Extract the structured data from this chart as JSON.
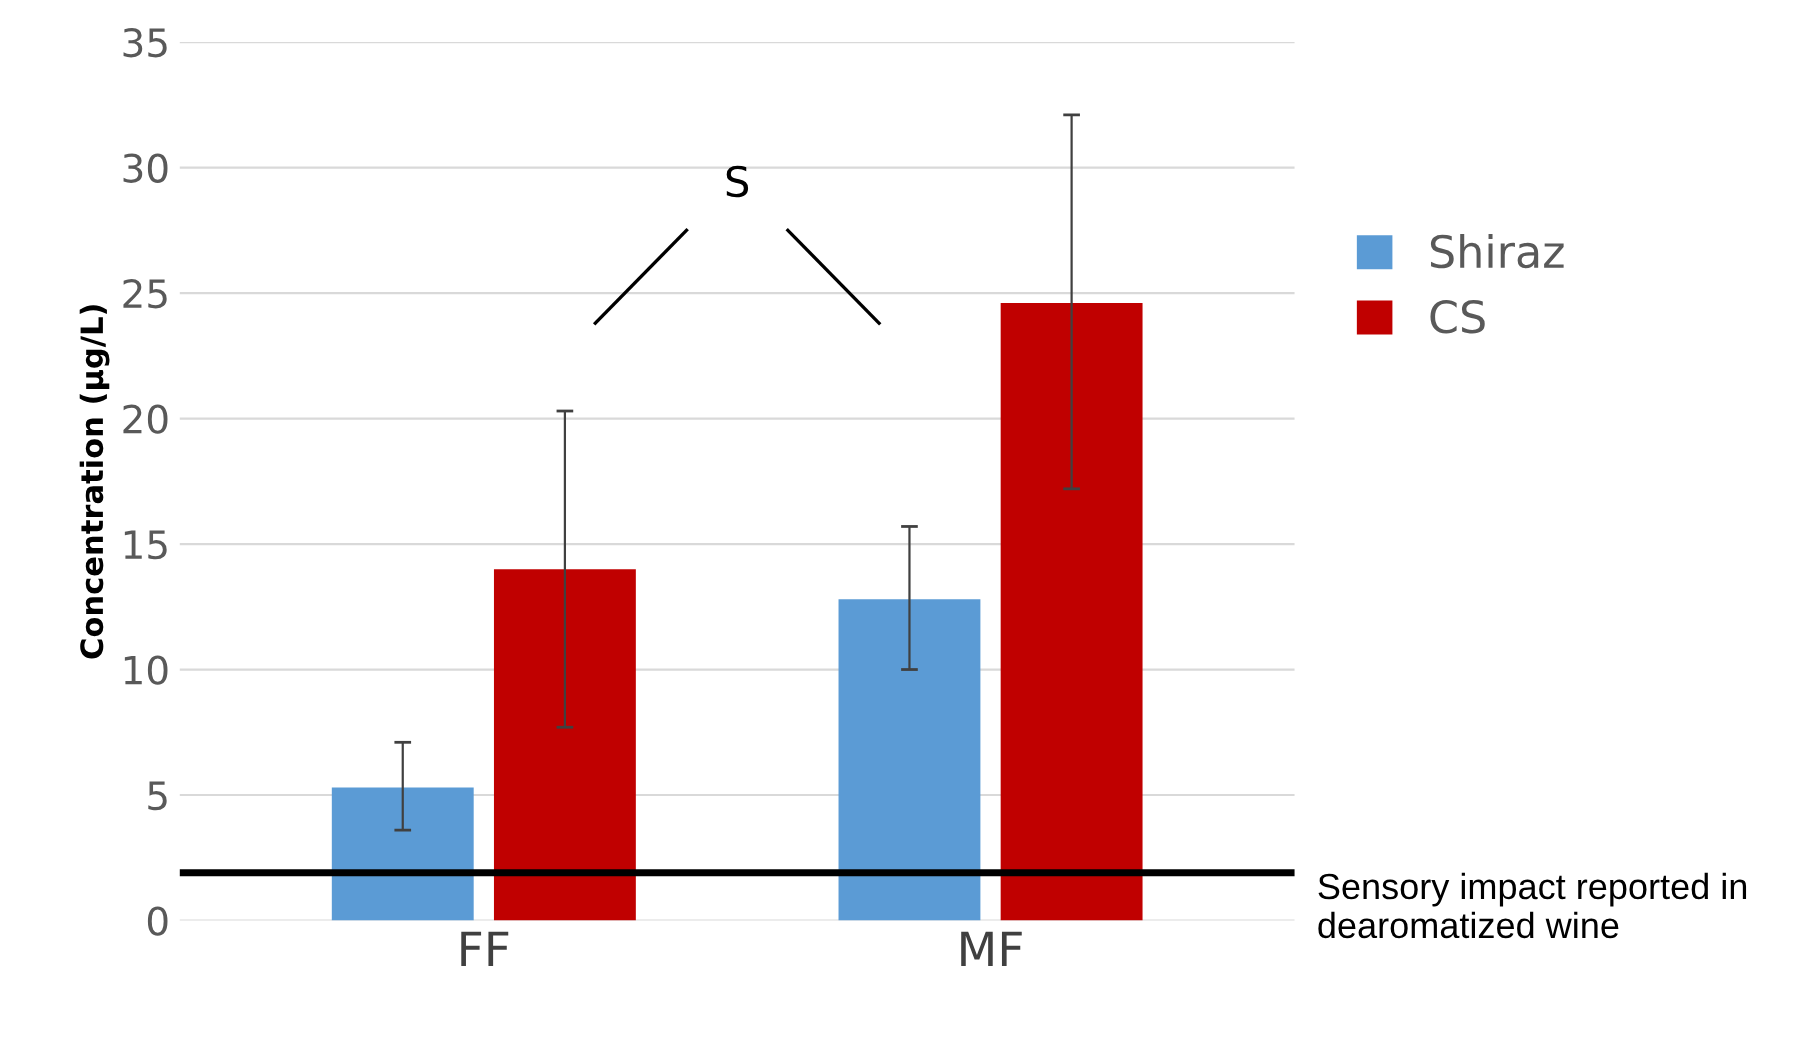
{
  "chart_data": {
    "type": "bar",
    "categories": [
      "FF",
      "MF"
    ],
    "ylabel": "Concentration (µg/L)",
    "series": [
      {
        "name": "Shiraz",
        "color": "#5b9bd5",
        "values": [
          5.3,
          12.8
        ],
        "errors": [
          [
            3.6,
            7.1
          ],
          [
            10.0,
            15.7
          ]
        ]
      },
      {
        "name": "CS",
        "color": "#c00000",
        "values": [
          14.0,
          24.6
        ],
        "errors": [
          [
            7.7,
            20.3
          ],
          [
            17.2,
            32.1
          ]
        ]
      }
    ],
    "ylim": [
      0,
      35
    ],
    "yticks": [
      0,
      5,
      10,
      15,
      20,
      25,
      30,
      35
    ],
    "grid": "y",
    "legend": "right",
    "ref_lines": [
      {
        "axis": "y",
        "value": 1.9,
        "label": "Sensory impact reported in dearomatized wine",
        "color": "#000000"
      }
    ],
    "annotations": [
      "S"
    ]
  }
}
